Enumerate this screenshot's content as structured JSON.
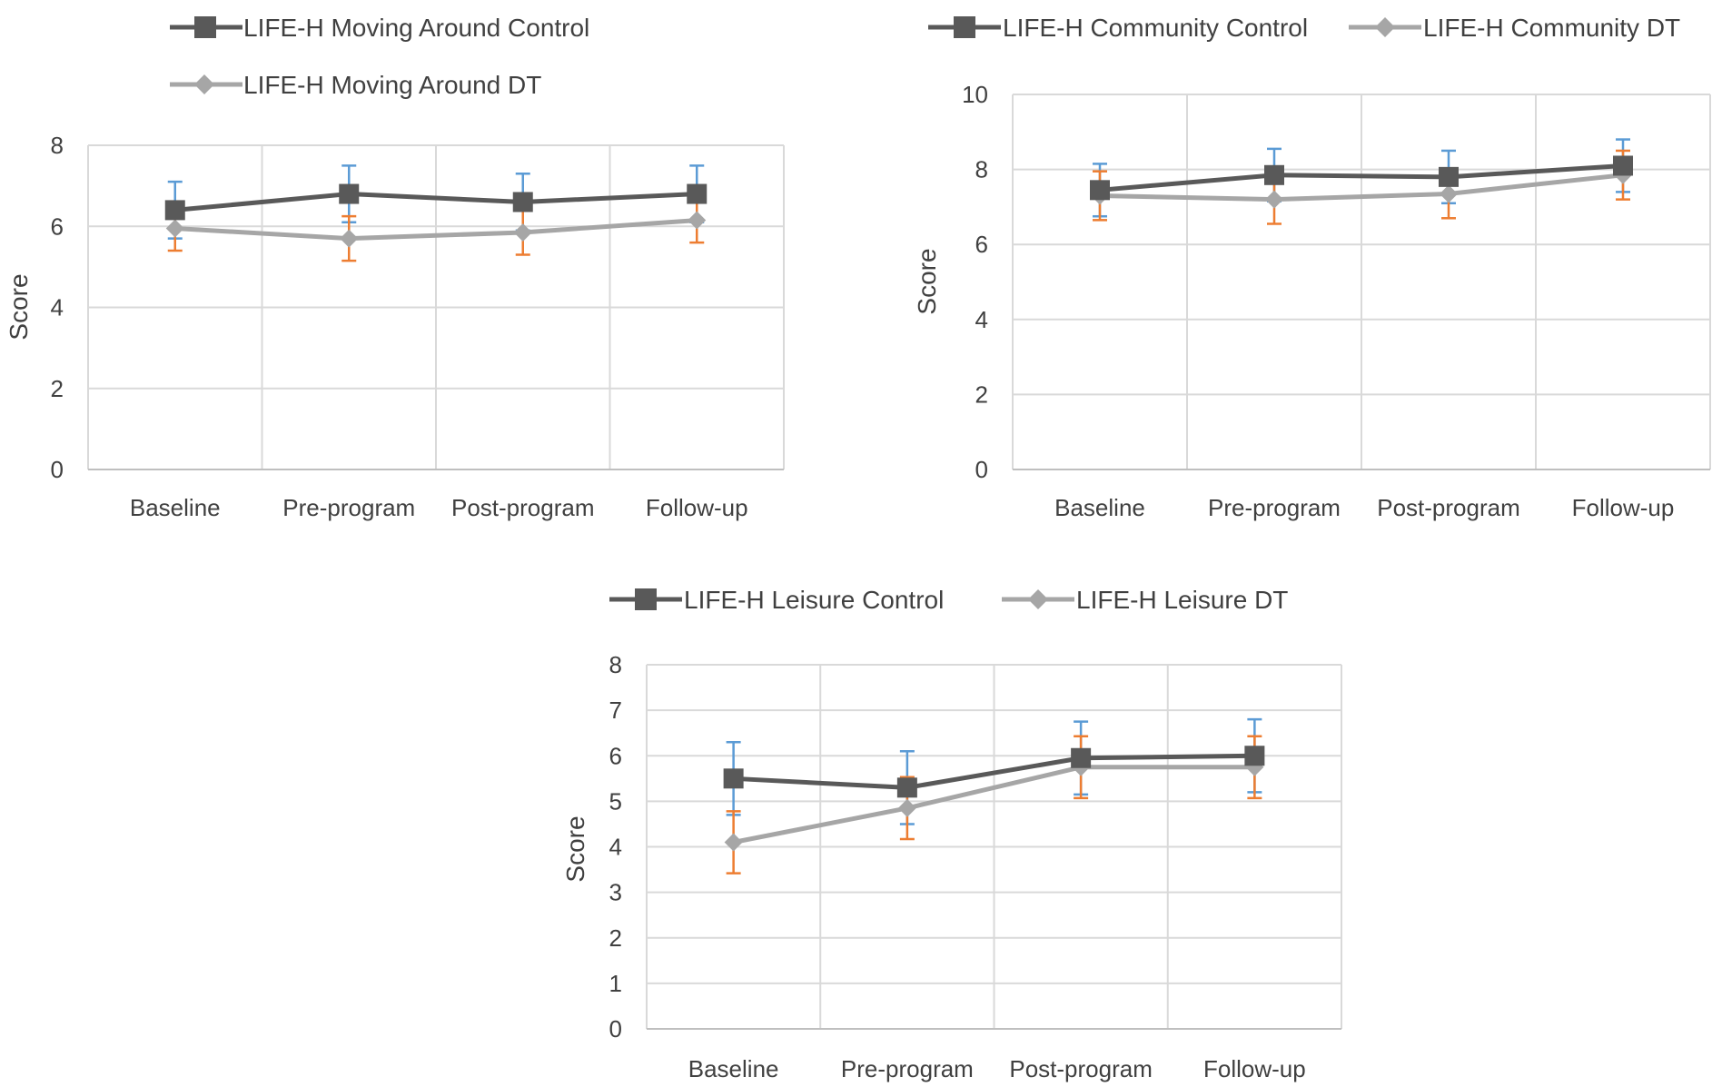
{
  "colors": {
    "control": "#595959",
    "dt": "#a6a6a6",
    "err_control": "#5b9bd5",
    "err_dt": "#ed7d31",
    "grid": "#d9d9d9",
    "text": "#404040"
  },
  "chart_data": [
    {
      "id": "moving",
      "type": "line",
      "categories": [
        "Baseline",
        "Pre-program",
        "Post-program",
        "Follow-up"
      ],
      "ylabel": "Score",
      "ylim": [
        0,
        8
      ],
      "yticks": [
        "0",
        "2",
        "4",
        "6",
        "8"
      ],
      "legend_position": "top-left",
      "series": [
        {
          "name": "LIFE-H Moving Around Control",
          "marker": "square",
          "values": [
            6.4,
            6.8,
            6.6,
            6.8
          ],
          "err_plus": [
            0.7,
            0.7,
            0.7,
            0.7
          ],
          "err_minus": [
            0.7,
            0.7,
            0.7,
            0.7
          ]
        },
        {
          "name": "LIFE-H Moving Around DT",
          "marker": "diamond",
          "values": [
            5.95,
            5.7,
            5.85,
            6.15
          ],
          "err_plus": [
            0.55,
            0.55,
            0.55,
            0.55
          ],
          "err_minus": [
            0.55,
            0.55,
            0.55,
            0.55
          ]
        }
      ]
    },
    {
      "id": "community",
      "type": "line",
      "categories": [
        "Baseline",
        "Pre-program",
        "Post-program",
        "Follow-up"
      ],
      "ylabel": "Score",
      "ylim": [
        0,
        10
      ],
      "yticks": [
        "0",
        "2",
        "4",
        "6",
        "8",
        "10"
      ],
      "legend_position": "top",
      "series": [
        {
          "name": "LIFE-H Community Control",
          "marker": "square",
          "values": [
            7.45,
            7.85,
            7.8,
            8.1
          ],
          "err_plus": [
            0.7,
            0.7,
            0.7,
            0.7
          ],
          "err_minus": [
            0.7,
            0.7,
            0.7,
            0.7
          ]
        },
        {
          "name": "LIFE-H Community DT",
          "marker": "diamond",
          "values": [
            7.3,
            7.2,
            7.35,
            7.85
          ],
          "err_plus": [
            0.65,
            0.65,
            0.65,
            0.65
          ],
          "err_minus": [
            0.65,
            0.65,
            0.65,
            0.65
          ]
        }
      ]
    },
    {
      "id": "leisure",
      "type": "line",
      "categories": [
        "Baseline",
        "Pre-program",
        "Post-program",
        "Follow-up"
      ],
      "ylabel": "Score",
      "ylim": [
        0,
        8
      ],
      "yticks": [
        "0",
        "1",
        "2",
        "3",
        "4",
        "5",
        "6",
        "7",
        "8"
      ],
      "legend_position": "top",
      "series": [
        {
          "name": "LIFE-H Leisure Control",
          "marker": "square",
          "values": [
            5.5,
            5.3,
            5.95,
            6.0
          ],
          "err_plus": [
            0.8,
            0.8,
            0.8,
            0.8
          ],
          "err_minus": [
            0.8,
            0.8,
            0.8,
            0.8
          ]
        },
        {
          "name": "LIFE-H Leisure DT",
          "marker": "diamond",
          "values": [
            4.1,
            4.85,
            5.75,
            5.75
          ],
          "err_plus": [
            0.68,
            0.68,
            0.68,
            0.68
          ],
          "err_minus": [
            0.68,
            0.68,
            0.68,
            0.68
          ]
        }
      ]
    }
  ]
}
